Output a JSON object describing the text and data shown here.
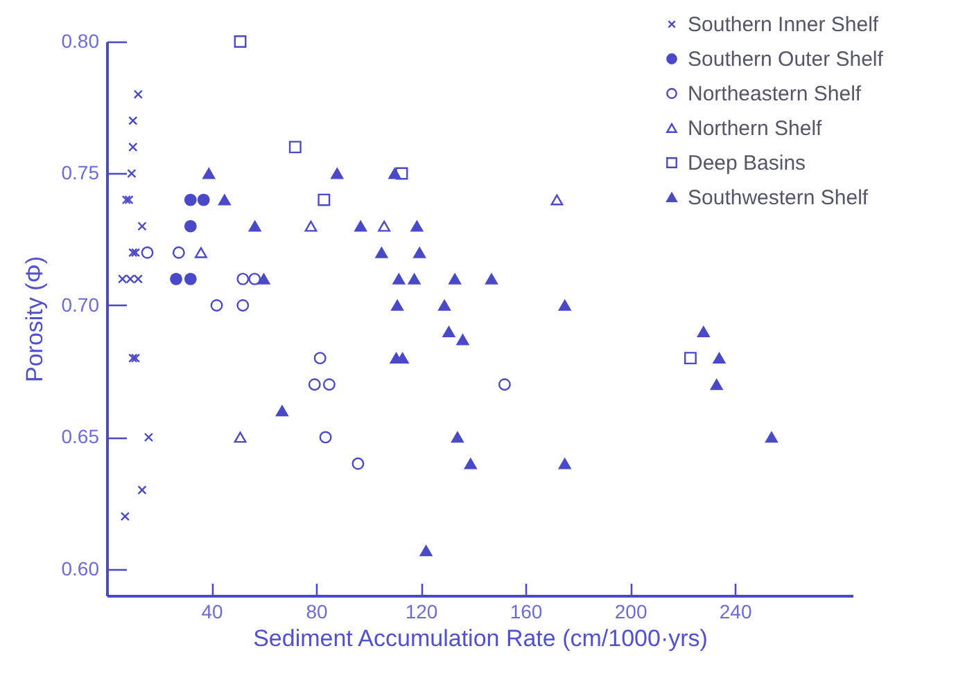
{
  "chart_data": {
    "type": "scatter",
    "xlabel": "Sediment Accumulation Rate (cm/1000·yrs)",
    "ylabel": "Porosity (Φ)",
    "xlim": [
      0,
      285
    ],
    "ylim": [
      0.59,
      0.8
    ],
    "xticks": [
      40,
      80,
      120,
      160,
      200,
      240
    ],
    "yticks": [
      {
        "value": 0.6,
        "label": "0.60"
      },
      {
        "value": 0.65,
        "label": "0.65"
      },
      {
        "value": 0.7,
        "label": "0.70"
      },
      {
        "value": 0.75,
        "label": "0.75"
      },
      {
        "value": 0.8,
        "label": "0.80"
      }
    ],
    "grid": false,
    "legend": "top right",
    "series": [
      {
        "name": "Southern Inner Shelf",
        "color": "#4a4ac8",
        "marker": "cross",
        "x": [
          12,
          10,
          10,
          9.5,
          7.5,
          8.5,
          13.5,
          10,
          11,
          6,
          9,
          12,
          10,
          11,
          16,
          13.5,
          7
        ],
        "values": [
          0.78,
          0.77,
          0.76,
          0.75,
          0.74,
          0.74,
          0.73,
          0.72,
          0.72,
          0.71,
          0.71,
          0.71,
          0.68,
          0.68,
          0.65,
          0.63,
          0.62
        ]
      },
      {
        "name": "Southern Outer Shelf",
        "color": "#4a4ac8",
        "marker": "circle",
        "x": [
          32,
          37,
          32,
          26.5,
          32
        ],
        "values": [
          0.74,
          0.74,
          0.73,
          0.71,
          0.71
        ]
      },
      {
        "name": "Northeastern Shelf",
        "color": "#4a4ac8",
        "marker": "circle",
        "x": [
          15.5,
          27.5,
          42,
          52,
          52,
          56.5,
          81.5,
          79.4,
          85,
          83.6,
          96,
          152
        ],
        "values": [
          0.72,
          0.72,
          0.7,
          0.7,
          0.71,
          0.71,
          0.68,
          0.67,
          0.67,
          0.65,
          0.64,
          0.67
        ]
      },
      {
        "name": "Northern Shelf",
        "color": "#4a4ac8",
        "marker": "triangle",
        "x": [
          36,
          51,
          78,
          106,
          172
        ],
        "values": [
          0.72,
          0.65,
          0.73,
          0.73,
          0.74
        ]
      },
      {
        "name": "Deep Basins",
        "color": "#4a4ac8",
        "marker": "square",
        "x": [
          51,
          72,
          83,
          112.7,
          223
        ],
        "values": [
          0.8,
          0.76,
          0.74,
          0.75,
          0.68
        ]
      },
      {
        "name": "Southwestern Shelf",
        "color": "#4a4ac8",
        "marker": "triangle",
        "x": [
          39,
          45,
          56.6,
          60,
          67,
          88,
          110,
          97,
          118.5,
          105,
          119.5,
          111.6,
          117.5,
          133,
          147,
          111,
          129,
          130.7,
          136,
          110.6,
          113,
          134,
          139,
          122,
          175,
          175,
          228,
          234,
          233,
          254
        ],
        "values": [
          0.75,
          0.74,
          0.73,
          0.71,
          0.66,
          0.75,
          0.75,
          0.73,
          0.73,
          0.72,
          0.72,
          0.71,
          0.71,
          0.71,
          0.71,
          0.7,
          0.7,
          0.69,
          0.687,
          0.68,
          0.68,
          0.65,
          0.64,
          0.607,
          0.7,
          0.64,
          0.69,
          0.68,
          0.67,
          0.65
        ]
      }
    ]
  }
}
